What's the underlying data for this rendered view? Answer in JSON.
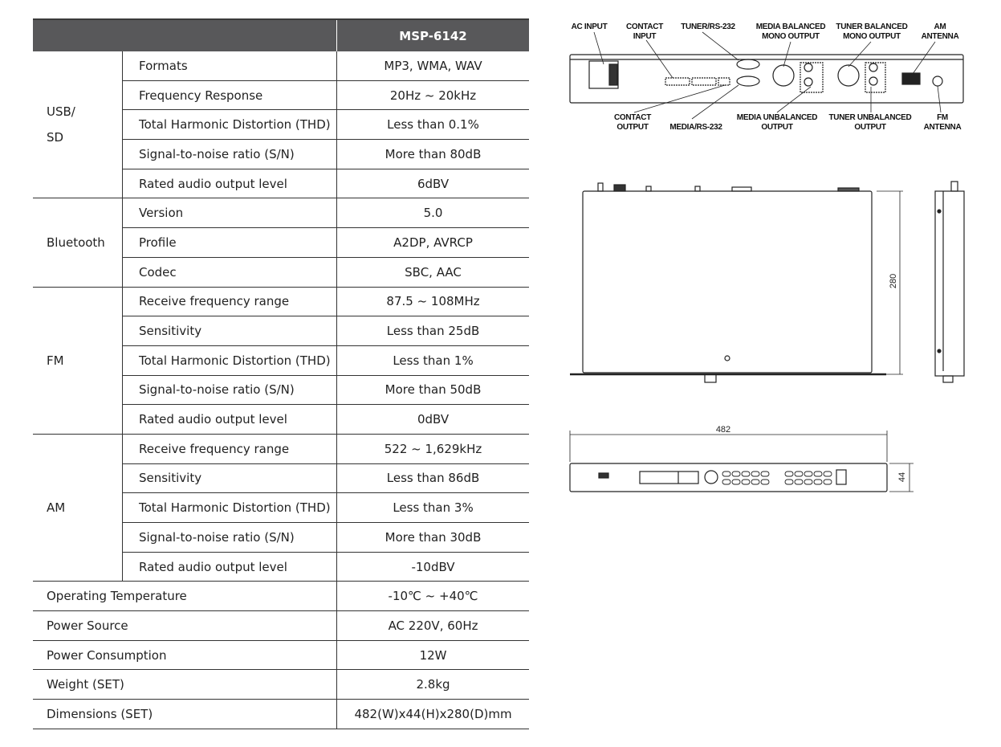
{
  "table": {
    "model": "MSP-6142",
    "groups": [
      {
        "name": [
          "USB/",
          "SD"
        ],
        "rows": [
          {
            "label": "Formats",
            "value": "MP3, WMA, WAV"
          },
          {
            "label": "Frequency Response",
            "value": "20Hz ~ 20kHz"
          },
          {
            "label": "Total Harmonic Distortion (THD)",
            "value": "Less than 0.1%"
          },
          {
            "label": "Signal-to-noise ratio (S/N)",
            "value": "More than 80dB"
          },
          {
            "label": "Rated audio output level",
            "value": "6dBV"
          }
        ]
      },
      {
        "name": [
          "Bluetooth"
        ],
        "rows": [
          {
            "label": "Version",
            "value": "5.0"
          },
          {
            "label": "Profile",
            "value": "A2DP, AVRCP"
          },
          {
            "label": "Codec",
            "value": "SBC, AAC"
          }
        ]
      },
      {
        "name": [
          "FM"
        ],
        "rows": [
          {
            "label": "Receive frequency range",
            "value": "87.5 ~ 108MHz"
          },
          {
            "label": "Sensitivity",
            "value": "Less than 25dB"
          },
          {
            "label": "Total Harmonic Distortion (THD)",
            "value": "Less than 1%"
          },
          {
            "label": "Signal-to-noise ratio (S/N)",
            "value": "More than 50dB"
          },
          {
            "label": "Rated audio output level",
            "value": "0dBV"
          }
        ]
      },
      {
        "name": [
          "AM"
        ],
        "rows": [
          {
            "label": "Receive frequency range",
            "value": "522 ~ 1,629kHz"
          },
          {
            "label": "Sensitivity",
            "value": "Less than 86dB"
          },
          {
            "label": "Total Harmonic Distortion (THD)",
            "value": "Less than 3%"
          },
          {
            "label": "Signal-to-noise ratio (S/N)",
            "value": "More than 30dB"
          },
          {
            "label": "Rated audio output level",
            "value": "-10dBV"
          }
        ]
      }
    ],
    "general": [
      {
        "label": "Operating Temperature",
        "value": "-10℃ ~ +40℃"
      },
      {
        "label": "Power Source",
        "value": "AC 220V, 60Hz"
      },
      {
        "label": "Power Consumption",
        "value": "12W"
      },
      {
        "label": "Weight (SET)",
        "value": "2.8kg"
      },
      {
        "label": "Dimensions (SET)",
        "value": "482(W)x44(H)x280(D)mm"
      }
    ]
  },
  "rear_panel": {
    "labels": {
      "ac_input": "AC INPUT",
      "contact_input": [
        "CONTACT",
        "INPUT"
      ],
      "tuner_rs232": "TUNER/RS-232",
      "media_balanced": [
        "MEDIA BALANCED",
        "MONO OUTPUT"
      ],
      "tuner_balanced": [
        "TUNER BALANCED",
        "MONO OUTPUT"
      ],
      "am_antenna": [
        "AM",
        "ANTENNA"
      ],
      "contact_output": [
        "CONTACT",
        "OUTPUT"
      ],
      "media_rs232": "MEDIA/RS-232",
      "media_unbalanced": [
        "MEDIA UNBALANCED",
        "OUTPUT"
      ],
      "tuner_unbalanced": [
        "TUNER UNBALANCED",
        "OUTPUT"
      ],
      "fm_antenna": [
        "FM",
        "ANTENNA"
      ]
    }
  },
  "dimensions": {
    "depth": "280",
    "width": "482",
    "height": "44"
  }
}
